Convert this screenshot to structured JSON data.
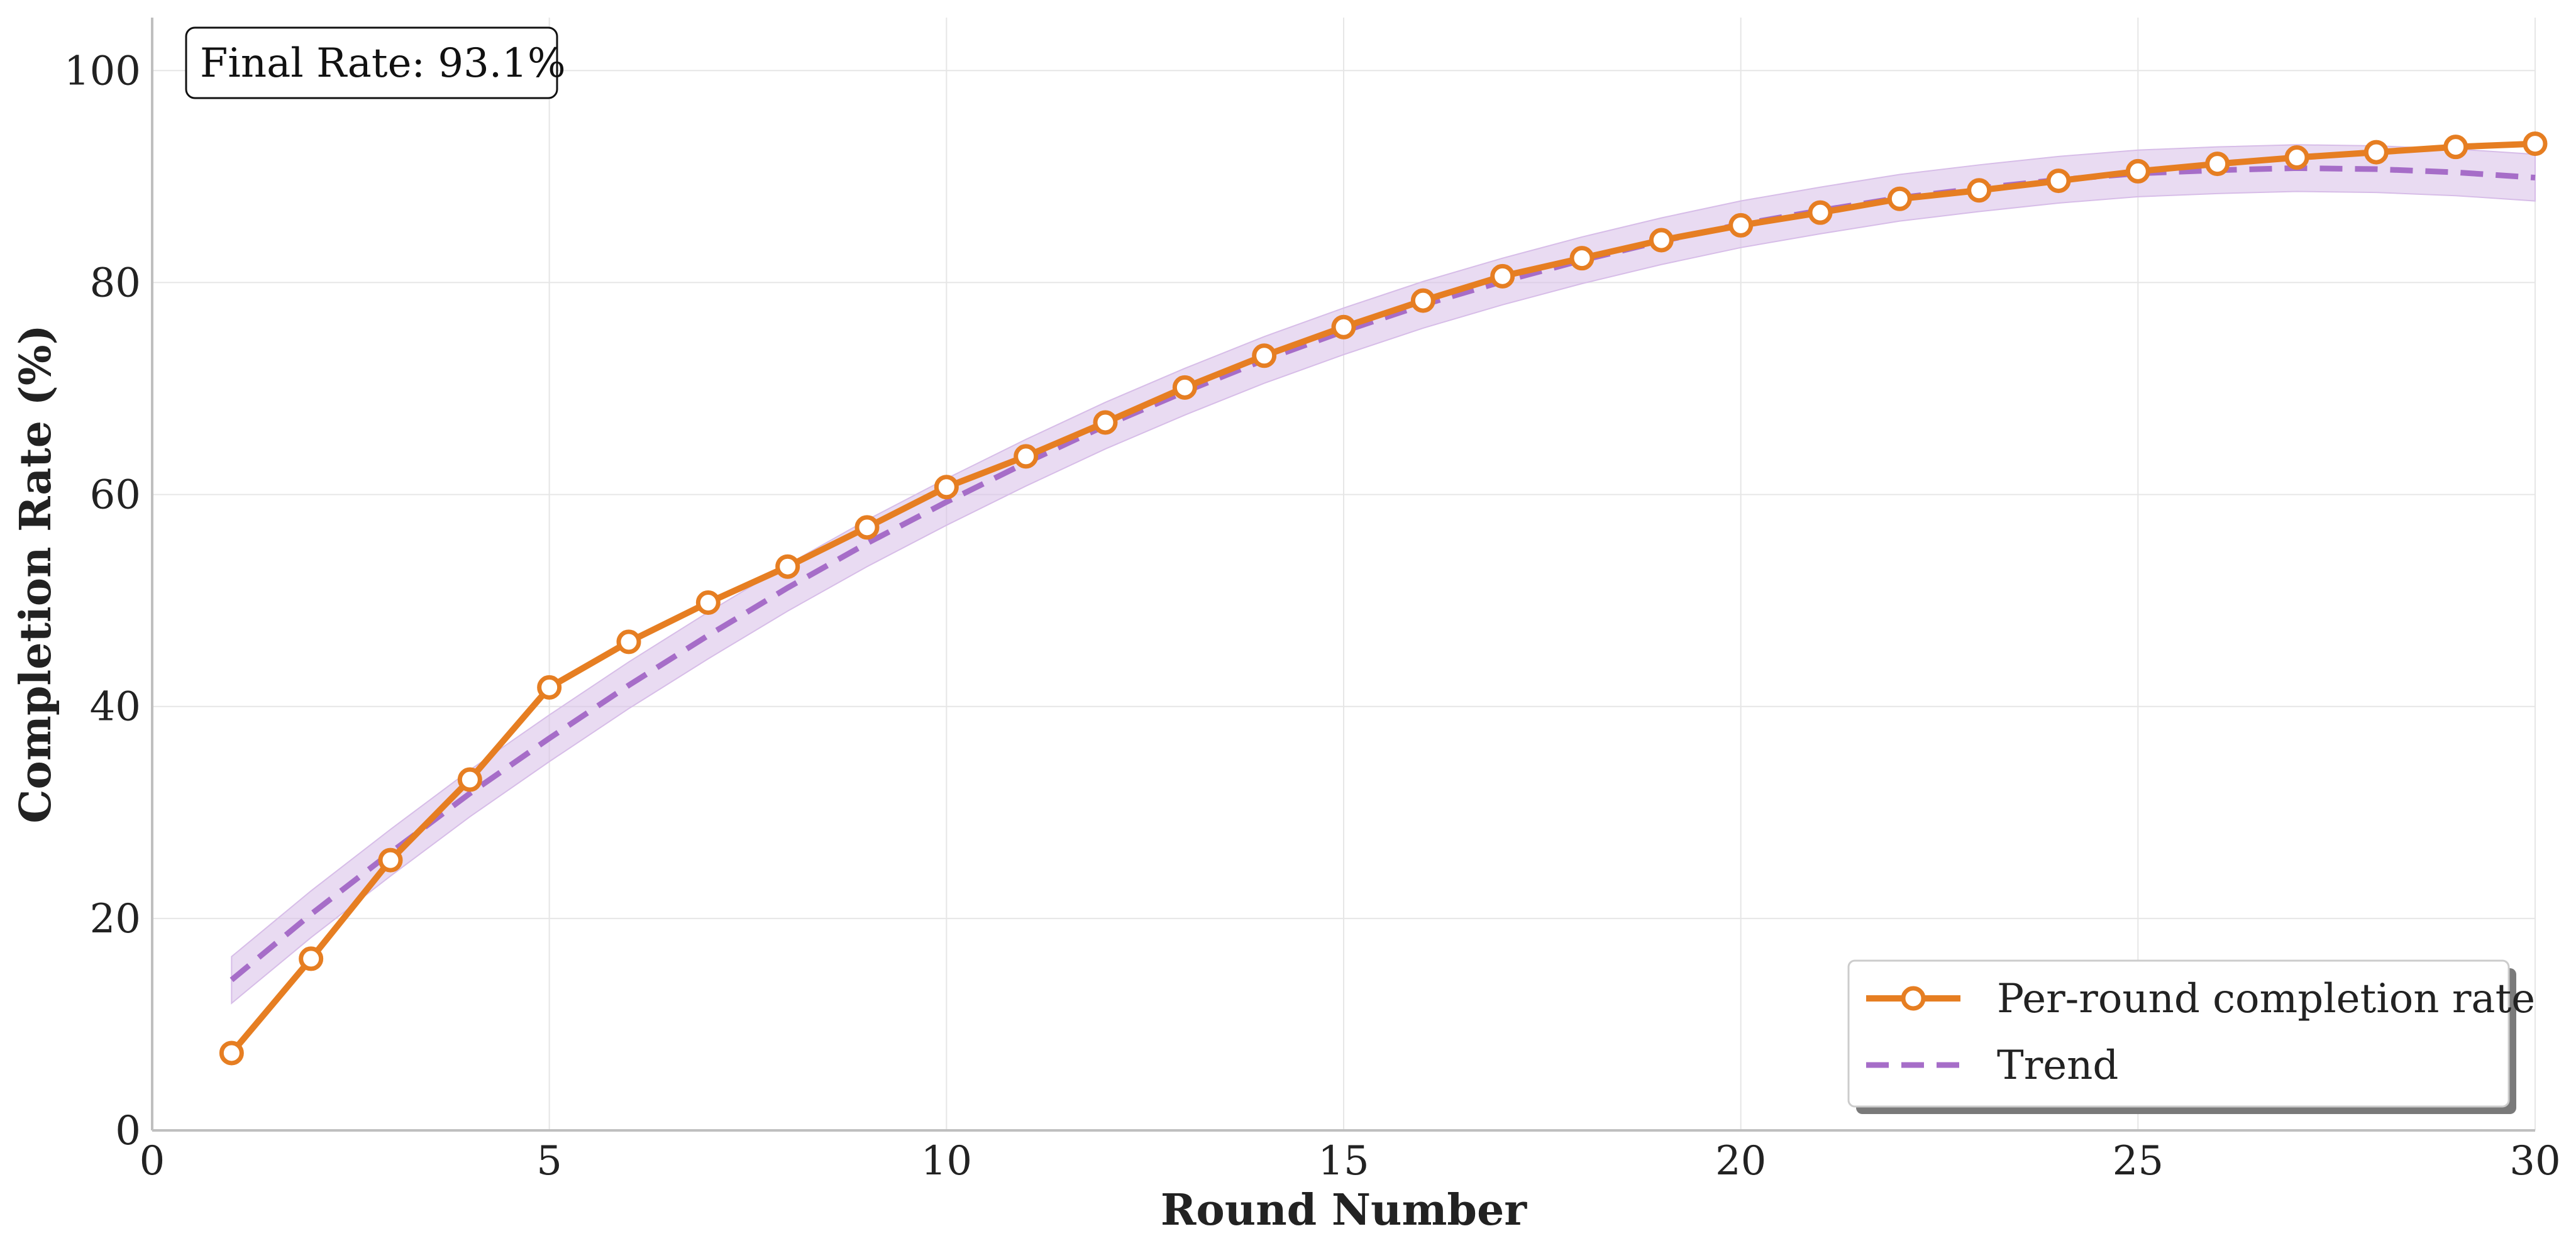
{
  "chart_data": {
    "type": "line",
    "title": "",
    "xlabel": "Round Number",
    "ylabel": "Completion Rate (%)",
    "xlim": [
      0,
      30
    ],
    "ylim": [
      0,
      105
    ],
    "xticks": [
      0,
      5,
      10,
      15,
      20,
      25,
      30
    ],
    "yticks": [
      0,
      20,
      40,
      60,
      80,
      100
    ],
    "grid": true,
    "legend_position": "lower-right",
    "annotation": "Final Rate: 93.1%",
    "series": [
      {
        "name": "Per-round completion rate",
        "style": "solid line with hollow circle markers",
        "color": "#E67E22",
        "x": [
          1,
          2,
          3,
          4,
          5,
          6,
          7,
          8,
          9,
          10,
          11,
          12,
          13,
          14,
          15,
          16,
          17,
          18,
          19,
          20,
          21,
          22,
          23,
          24,
          25,
          26,
          27,
          28,
          29,
          30
        ],
        "y": [
          7.3,
          16.2,
          25.5,
          33.1,
          41.8,
          46.1,
          49.8,
          53.2,
          56.9,
          60.7,
          63.6,
          66.8,
          70.1,
          73.1,
          75.8,
          78.3,
          80.6,
          82.3,
          84.0,
          85.4,
          86.6,
          87.9,
          88.7,
          89.6,
          90.5,
          91.2,
          91.8,
          92.3,
          92.8,
          93.1
        ]
      },
      {
        "name": "Trend",
        "style": "dashed line with shaded band",
        "color": "#A66DC8",
        "band_color": "#D7BDE8",
        "x": [
          1,
          2,
          3,
          4,
          5,
          6,
          7,
          8,
          9,
          10,
          11,
          12,
          13,
          14,
          15,
          16,
          17,
          18,
          19,
          20,
          21,
          22,
          23,
          24,
          25,
          26,
          27,
          28,
          29,
          30
        ],
        "y": [
          14.2,
          20.4,
          26.2,
          31.8,
          37.0,
          42.0,
          46.7,
          51.2,
          55.4,
          59.3,
          63.0,
          66.5,
          69.7,
          72.7,
          75.4,
          77.9,
          80.1,
          82.1,
          83.9,
          85.5,
          86.8,
          88.0,
          88.9,
          89.7,
          90.3,
          90.6,
          90.8,
          90.7,
          90.4,
          89.9
        ],
        "band": 2.2
      }
    ]
  }
}
